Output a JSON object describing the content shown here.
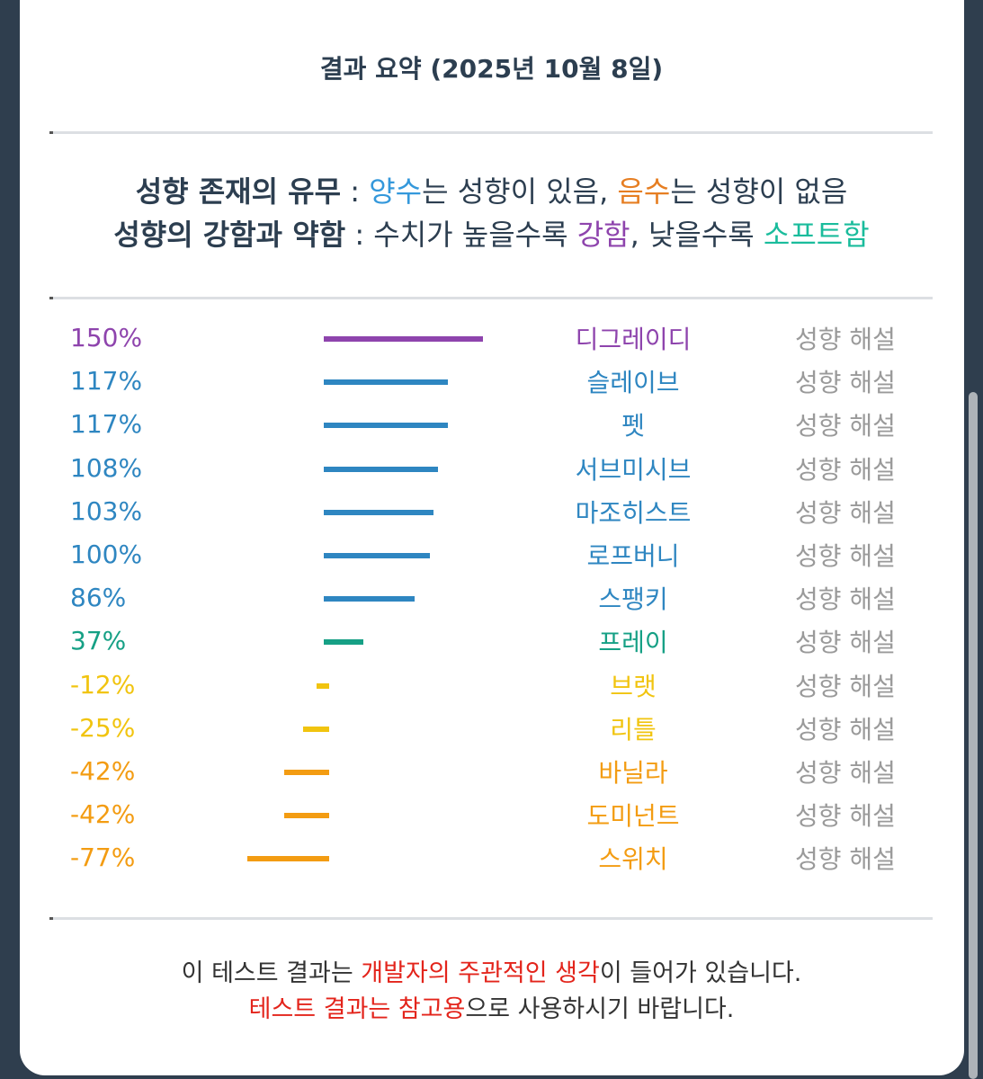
{
  "title": "결과 요약 (2025년 10월 8일)",
  "legend": {
    "line1": {
      "label": "성향 존재의 유무",
      "sep": " : ",
      "positive_word": "양수",
      "positive_rest": "는 성향이 있음, ",
      "negative_word": "음수",
      "negative_rest": "는 성향이 없음"
    },
    "line2": {
      "label": "성향의 강함과 약함",
      "sep": " : ",
      "high_text": "수치가 높을수록 ",
      "strong_word": "강함",
      "low_text": ", 낮을수록 ",
      "soft_word": "소프트함"
    }
  },
  "colors": {
    "purple": "#8e44ad",
    "blue": "#2e86c1",
    "green": "#16a085",
    "yellow": "#f1c40f",
    "orange": "#f39c12",
    "positive": "#3498db",
    "negative": "#e67e22",
    "red": "#e3241b"
  },
  "results": [
    {
      "value": 150,
      "label": "150%",
      "name": "디그레이디",
      "color": "#8e44ad",
      "desc": "성향 해설"
    },
    {
      "value": 117,
      "label": "117%",
      "name": "슬레이브",
      "color": "#2e86c1",
      "desc": "성향 해설"
    },
    {
      "value": 117,
      "label": "117%",
      "name": "펫",
      "color": "#2e86c1",
      "desc": "성향 해설"
    },
    {
      "value": 108,
      "label": "108%",
      "name": "서브미시브",
      "color": "#2e86c1",
      "desc": "성향 해설"
    },
    {
      "value": 103,
      "label": "103%",
      "name": "마조히스트",
      "color": "#2e86c1",
      "desc": "성향 해설"
    },
    {
      "value": 100,
      "label": "100%",
      "name": "로프버니",
      "color": "#2e86c1",
      "desc": "성향 해설"
    },
    {
      "value": 86,
      "label": "86%",
      "name": "스팽키",
      "color": "#2e86c1",
      "desc": "성향 해설"
    },
    {
      "value": 37,
      "label": "37%",
      "name": "프레이",
      "color": "#16a085",
      "desc": "성향 해설"
    },
    {
      "value": -12,
      "label": "-12%",
      "name": "브랫",
      "color": "#f1c40f",
      "desc": "성향 해설"
    },
    {
      "value": -25,
      "label": "-25%",
      "name": "리틀",
      "color": "#f1c40f",
      "desc": "성향 해설"
    },
    {
      "value": -42,
      "label": "-42%",
      "name": "바닐라",
      "color": "#f39c12",
      "desc": "성향 해설"
    },
    {
      "value": -42,
      "label": "-42%",
      "name": "도미넌트",
      "color": "#f39c12",
      "desc": "성향 해설"
    },
    {
      "value": -77,
      "label": "-77%",
      "name": "스위치",
      "color": "#f39c12",
      "desc": "성향 해설"
    }
  ],
  "footer": {
    "line1_a": "이 테스트 결과는 ",
    "line1_red": "개발자의 주관적인 생각",
    "line1_b": "이 들어가 있습니다.",
    "line2_red": "테스트 결과는 참고용",
    "line2_b": "으로 사용하시기 바랍니다."
  }
}
